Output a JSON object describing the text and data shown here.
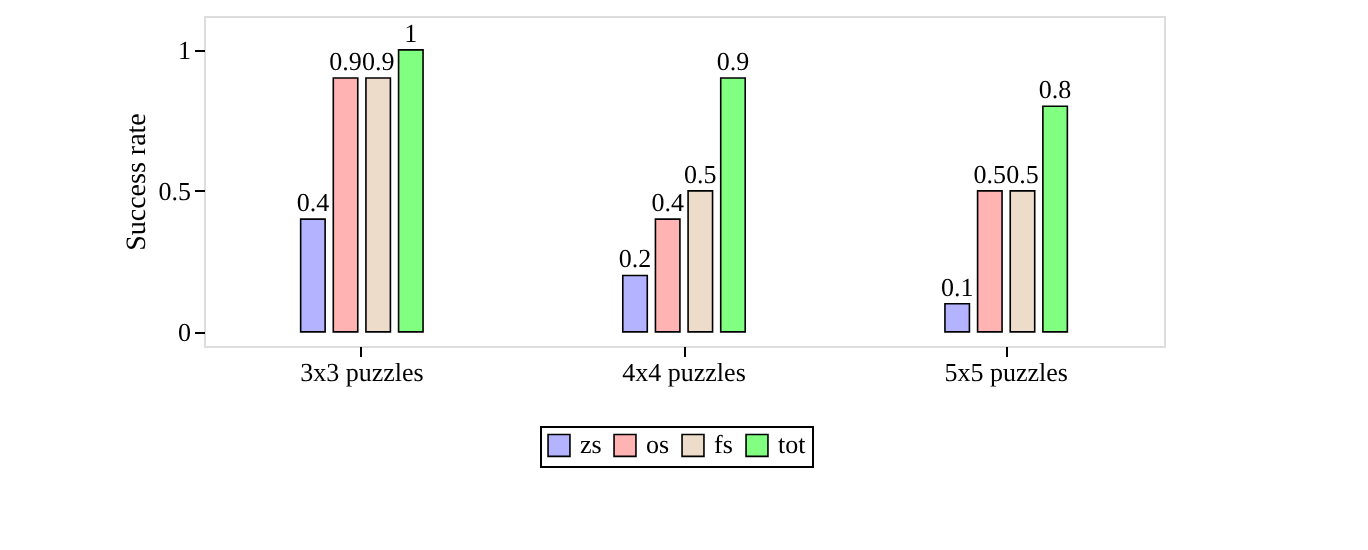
{
  "chart_data": {
    "type": "bar",
    "ylabel": "Success rate",
    "categories": [
      "3x3 puzzles",
      "4x4 puzzles",
      "5x5 puzzles"
    ],
    "series": [
      {
        "name": "zs",
        "color": "#b3b3ff",
        "values": [
          0.4,
          0.2,
          0.1
        ]
      },
      {
        "name": "os",
        "color": "#ffb3b3",
        "values": [
          0.9,
          0.4,
          0.5
        ]
      },
      {
        "name": "fs",
        "color": "#ecdcc9",
        "values": [
          0.9,
          0.5,
          0.5
        ]
      },
      {
        "name": "tot",
        "color": "#80ff80",
        "values": [
          1,
          0.9,
          0.8
        ]
      }
    ],
    "ylim": [
      -0.05,
      1.12
    ],
    "yticks": [
      0,
      0.5,
      1
    ],
    "grid": false,
    "legend": "bottom",
    "data_labels": true
  }
}
